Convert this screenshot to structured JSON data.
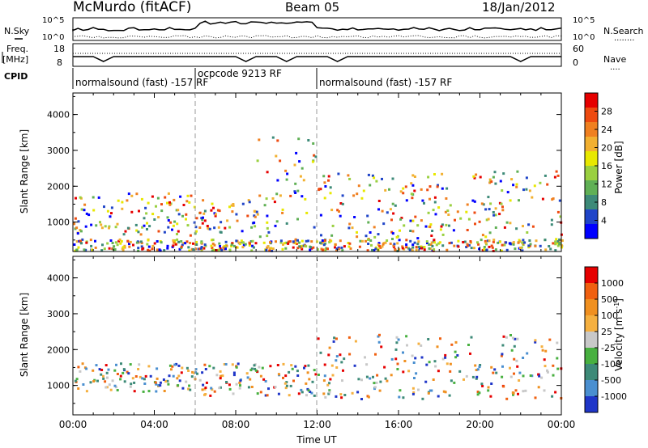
{
  "header": {
    "title": "McMurdo (fitACF)",
    "beam": "Beam 05",
    "date": "18/Jan/2012"
  },
  "noise_panel": {
    "left_label": "N.Sky",
    "left_ticks": [
      "10^5",
      "10^0"
    ],
    "right_ticks": [
      "10^5",
      "10^0"
    ],
    "right_label": "N.Search",
    "right_line_glyph": "........"
  },
  "freq_panel": {
    "left_label_line1": "Freq.",
    "left_label_line2": "[MHz]",
    "left_ticks": [
      "18",
      "8"
    ],
    "right_ticks": [
      "60",
      "0"
    ],
    "right_label": "Nave",
    "right_line_glyph": "...."
  },
  "cpid": {
    "label": "CPID",
    "segments": [
      {
        "text": "normalsound (fast) -157 RF",
        "start_hour": 0,
        "end_hour": 6
      },
      {
        "text": "ocpcode 9213 RF",
        "start_hour": 6,
        "end_hour": 12
      },
      {
        "text": "normalsound (fast) -157 RF",
        "start_hour": 12,
        "end_hour": 24
      }
    ]
  },
  "chart_data": [
    {
      "type": "heatmap",
      "parameter": "power",
      "ylabel": "Slant Range [km]",
      "xlabel": "",
      "xlim": [
        0,
        24
      ],
      "ylim": [
        180,
        4600
      ],
      "y_ticks": [
        "1000",
        "2000",
        "3000",
        "4000"
      ],
      "colorbar": {
        "label": "Power [dB]",
        "ticks": [
          "4",
          "8",
          "12",
          "16",
          "20",
          "24",
          "28"
        ],
        "range": [
          0,
          30
        ],
        "colors": [
          "#0000ff",
          "#2045c8",
          "#3d8a78",
          "#60b055",
          "#9ad040",
          "#e8e800",
          "#f2b030",
          "#f08020",
          "#ee4a10",
          "#e60000"
        ]
      },
      "echo_regions": [
        {
          "x": [
            0.0,
            6.0
          ],
          "y": [
            600,
            1800
          ],
          "value": 16
        },
        {
          "x": [
            6.0,
            9.0
          ],
          "y": [
            700,
            1600
          ],
          "value": 22
        },
        {
          "x": [
            9.0,
            12.0
          ],
          "y": [
            500,
            3500
          ],
          "value": 14
        },
        {
          "x": [
            12.0,
            24.0
          ],
          "y": [
            500,
            2400
          ],
          "value": 18
        },
        {
          "x": [
            0.0,
            24.0
          ],
          "y": [
            180,
            500
          ],
          "value": 10
        }
      ]
    },
    {
      "type": "heatmap",
      "parameter": "velocity",
      "ylabel": "Slant Range [km]",
      "xlabel": "Time UT",
      "xlim": [
        0,
        24
      ],
      "ylim": [
        180,
        4600
      ],
      "y_ticks": [
        "1000",
        "2000",
        "3000",
        "4000"
      ],
      "x_ticks": [
        "00:00",
        "04:00",
        "08:00",
        "12:00",
        "16:00",
        "20:00",
        "00:00"
      ],
      "colorbar": {
        "label": "Velocity [m s",
        "label_sup": "-1",
        "label_end": "]",
        "ticks": [
          "1000",
          "500",
          "100",
          "25",
          "-25",
          "-100",
          "-500",
          "-1000"
        ],
        "colors": [
          "#1f36c8",
          "#4a8fd0",
          "#3d8a78",
          "#48b040",
          "#c8c8c8",
          "#f5b040",
          "#f09020",
          "#f06010",
          "#e60000"
        ]
      },
      "echo_regions": [
        {
          "x": [
            0.0,
            6.0
          ],
          "y": [
            800,
            1600
          ],
          "value": 300
        },
        {
          "x": [
            6.0,
            12.0
          ],
          "y": [
            700,
            1600
          ],
          "value": 200
        },
        {
          "x": [
            12.0,
            24.0
          ],
          "y": [
            600,
            2400
          ],
          "value": -300
        }
      ]
    }
  ]
}
